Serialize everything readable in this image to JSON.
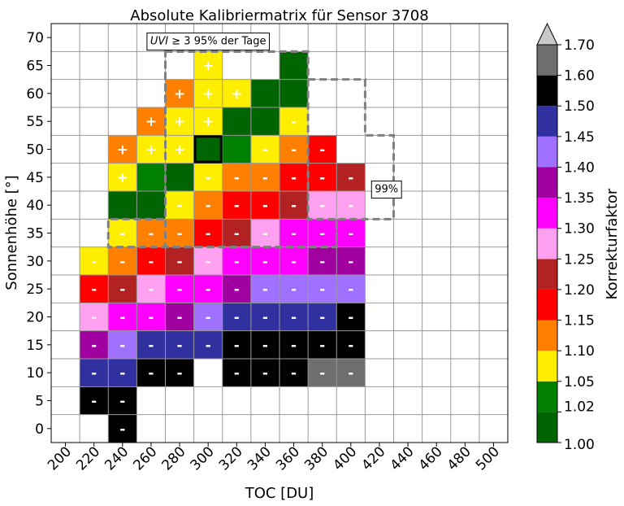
{
  "chart_data": {
    "type": "heatmap",
    "title": "Absolute Kalibriermatrix für Sensor 3708",
    "xlabel": "TOC [DU]",
    "ylabel": "Sonnenhöhe [°]",
    "x_ticks": [
      200,
      220,
      240,
      260,
      280,
      300,
      320,
      340,
      360,
      380,
      400,
      420,
      440,
      460,
      480,
      500
    ],
    "y_ticks": [
      0,
      5,
      10,
      15,
      20,
      25,
      30,
      35,
      40,
      45,
      50,
      55,
      60,
      65,
      70
    ],
    "xlim": [
      190,
      510
    ],
    "ylim": [
      -2.5,
      72.5
    ],
    "grid": true,
    "colorbar": {
      "label": "Korrekturfaktor",
      "tick_labels": [
        "1.00",
        "1.02",
        "1.05",
        "1.10",
        "1.15",
        "1.20",
        "1.25",
        "1.30",
        "1.35",
        "1.40",
        "1.45",
        "1.50",
        "1.60",
        "1.70"
      ],
      "bins": [
        {
          "from": 1.0,
          "to": 1.02,
          "color": "#006400"
        },
        {
          "from": 1.02,
          "to": 1.05,
          "color": "#008000"
        },
        {
          "from": 1.05,
          "to": 1.1,
          "color": "#ffee00"
        },
        {
          "from": 1.1,
          "to": 1.15,
          "color": "#ff8000"
        },
        {
          "from": 1.15,
          "to": 1.2,
          "color": "#ff0000"
        },
        {
          "from": 1.2,
          "to": 1.25,
          "color": "#b22222"
        },
        {
          "from": 1.25,
          "to": 1.3,
          "color": "#ffa0f0"
        },
        {
          "from": 1.3,
          "to": 1.35,
          "color": "#ff00ff"
        },
        {
          "from": 1.35,
          "to": 1.4,
          "color": "#a000a0"
        },
        {
          "from": 1.4,
          "to": 1.45,
          "color": "#a070ff"
        },
        {
          "from": 1.45,
          "to": 1.5,
          "color": "#3030a0"
        },
        {
          "from": 1.5,
          "to": 1.6,
          "color": "#000000"
        },
        {
          "from": 1.6,
          "to": 1.7,
          "color": "#6e6e6e"
        }
      ],
      "extend_top_color": "#c8c8c8"
    },
    "cells": [
      {
        "toc": 240,
        "elev": 0,
        "factor": 1.55,
        "sign": "-"
      },
      {
        "toc": 220,
        "elev": 5,
        "factor": 1.55,
        "sign": "-"
      },
      {
        "toc": 240,
        "elev": 5,
        "factor": 1.55,
        "sign": "-"
      },
      {
        "toc": 220,
        "elev": 10,
        "factor": 1.47,
        "sign": "-"
      },
      {
        "toc": 240,
        "elev": 10,
        "factor": 1.47,
        "sign": "-"
      },
      {
        "toc": 260,
        "elev": 10,
        "factor": 1.55,
        "sign": "-"
      },
      {
        "toc": 280,
        "elev": 10,
        "factor": 1.55,
        "sign": "-"
      },
      {
        "toc": 320,
        "elev": 10,
        "factor": 1.55,
        "sign": "-"
      },
      {
        "toc": 340,
        "elev": 10,
        "factor": 1.55,
        "sign": "-"
      },
      {
        "toc": 360,
        "elev": 10,
        "factor": 1.55,
        "sign": "-"
      },
      {
        "toc": 380,
        "elev": 10,
        "factor": 1.65,
        "sign": "-"
      },
      {
        "toc": 400,
        "elev": 10,
        "factor": 1.65,
        "sign": "-"
      },
      {
        "toc": 220,
        "elev": 15,
        "factor": 1.37,
        "sign": "-"
      },
      {
        "toc": 240,
        "elev": 15,
        "factor": 1.42,
        "sign": "-"
      },
      {
        "toc": 260,
        "elev": 15,
        "factor": 1.47,
        "sign": "-"
      },
      {
        "toc": 280,
        "elev": 15,
        "factor": 1.47,
        "sign": "-"
      },
      {
        "toc": 300,
        "elev": 15,
        "factor": 1.47,
        "sign": "-"
      },
      {
        "toc": 320,
        "elev": 15,
        "factor": 1.55,
        "sign": "-"
      },
      {
        "toc": 340,
        "elev": 15,
        "factor": 1.55,
        "sign": "-"
      },
      {
        "toc": 360,
        "elev": 15,
        "factor": 1.55,
        "sign": "-"
      },
      {
        "toc": 380,
        "elev": 15,
        "factor": 1.55,
        "sign": "-"
      },
      {
        "toc": 400,
        "elev": 15,
        "factor": 1.55,
        "sign": "-"
      },
      {
        "toc": 220,
        "elev": 20,
        "factor": 1.27,
        "sign": "-"
      },
      {
        "toc": 240,
        "elev": 20,
        "factor": 1.32,
        "sign": "-"
      },
      {
        "toc": 260,
        "elev": 20,
        "factor": 1.32,
        "sign": "-"
      },
      {
        "toc": 280,
        "elev": 20,
        "factor": 1.37,
        "sign": "-"
      },
      {
        "toc": 300,
        "elev": 20,
        "factor": 1.42,
        "sign": "-"
      },
      {
        "toc": 320,
        "elev": 20,
        "factor": 1.47,
        "sign": "-"
      },
      {
        "toc": 340,
        "elev": 20,
        "factor": 1.47,
        "sign": "-"
      },
      {
        "toc": 360,
        "elev": 20,
        "factor": 1.47,
        "sign": "-"
      },
      {
        "toc": 380,
        "elev": 20,
        "factor": 1.47,
        "sign": "-"
      },
      {
        "toc": 400,
        "elev": 20,
        "factor": 1.55,
        "sign": "-"
      },
      {
        "toc": 220,
        "elev": 25,
        "factor": 1.17,
        "sign": "-"
      },
      {
        "toc": 240,
        "elev": 25,
        "factor": 1.22,
        "sign": "-"
      },
      {
        "toc": 260,
        "elev": 25,
        "factor": 1.27,
        "sign": "-"
      },
      {
        "toc": 280,
        "elev": 25,
        "factor": 1.32,
        "sign": "-"
      },
      {
        "toc": 300,
        "elev": 25,
        "factor": 1.32,
        "sign": "-"
      },
      {
        "toc": 320,
        "elev": 25,
        "factor": 1.37,
        "sign": "-"
      },
      {
        "toc": 340,
        "elev": 25,
        "factor": 1.42,
        "sign": "-"
      },
      {
        "toc": 360,
        "elev": 25,
        "factor": 1.42,
        "sign": "-"
      },
      {
        "toc": 380,
        "elev": 25,
        "factor": 1.42,
        "sign": "-"
      },
      {
        "toc": 400,
        "elev": 25,
        "factor": 1.42,
        "sign": "-"
      },
      {
        "toc": 220,
        "elev": 30,
        "factor": 1.07,
        "sign": "-"
      },
      {
        "toc": 240,
        "elev": 30,
        "factor": 1.12,
        "sign": "-"
      },
      {
        "toc": 260,
        "elev": 30,
        "factor": 1.17,
        "sign": "-"
      },
      {
        "toc": 280,
        "elev": 30,
        "factor": 1.22,
        "sign": "-"
      },
      {
        "toc": 300,
        "elev": 30,
        "factor": 1.27,
        "sign": "-"
      },
      {
        "toc": 320,
        "elev": 30,
        "factor": 1.32,
        "sign": "-"
      },
      {
        "toc": 340,
        "elev": 30,
        "factor": 1.32,
        "sign": "-"
      },
      {
        "toc": 360,
        "elev": 30,
        "factor": 1.32,
        "sign": "-"
      },
      {
        "toc": 380,
        "elev": 30,
        "factor": 1.37,
        "sign": "-"
      },
      {
        "toc": 400,
        "elev": 30,
        "factor": 1.37,
        "sign": "-"
      },
      {
        "toc": 240,
        "elev": 35,
        "factor": 1.07,
        "sign": "-"
      },
      {
        "toc": 260,
        "elev": 35,
        "factor": 1.12,
        "sign": "-"
      },
      {
        "toc": 280,
        "elev": 35,
        "factor": 1.12,
        "sign": "-"
      },
      {
        "toc": 300,
        "elev": 35,
        "factor": 1.17,
        "sign": "-"
      },
      {
        "toc": 320,
        "elev": 35,
        "factor": 1.22,
        "sign": "-"
      },
      {
        "toc": 340,
        "elev": 35,
        "factor": 1.27,
        "sign": "-"
      },
      {
        "toc": 360,
        "elev": 35,
        "factor": 1.32,
        "sign": "-"
      },
      {
        "toc": 380,
        "elev": 35,
        "factor": 1.32,
        "sign": "-"
      },
      {
        "toc": 400,
        "elev": 35,
        "factor": 1.32,
        "sign": "-"
      },
      {
        "toc": 240,
        "elev": 40,
        "factor": 1.01,
        "sign": ""
      },
      {
        "toc": 260,
        "elev": 40,
        "factor": 1.01,
        "sign": ""
      },
      {
        "toc": 280,
        "elev": 40,
        "factor": 1.07,
        "sign": "-"
      },
      {
        "toc": 300,
        "elev": 40,
        "factor": 1.12,
        "sign": "-"
      },
      {
        "toc": 320,
        "elev": 40,
        "factor": 1.17,
        "sign": "-"
      },
      {
        "toc": 340,
        "elev": 40,
        "factor": 1.17,
        "sign": "-"
      },
      {
        "toc": 360,
        "elev": 40,
        "factor": 1.22,
        "sign": "-"
      },
      {
        "toc": 380,
        "elev": 40,
        "factor": 1.27,
        "sign": "-"
      },
      {
        "toc": 400,
        "elev": 40,
        "factor": 1.27,
        "sign": "-"
      },
      {
        "toc": 240,
        "elev": 45,
        "factor": 1.07,
        "sign": "+"
      },
      {
        "toc": 260,
        "elev": 45,
        "factor": 1.03,
        "sign": ""
      },
      {
        "toc": 280,
        "elev": 45,
        "factor": 1.01,
        "sign": ""
      },
      {
        "toc": 300,
        "elev": 45,
        "factor": 1.07,
        "sign": "-"
      },
      {
        "toc": 320,
        "elev": 45,
        "factor": 1.12,
        "sign": "-"
      },
      {
        "toc": 340,
        "elev": 45,
        "factor": 1.12,
        "sign": "-"
      },
      {
        "toc": 360,
        "elev": 45,
        "factor": 1.17,
        "sign": "-"
      },
      {
        "toc": 380,
        "elev": 45,
        "factor": 1.17,
        "sign": "-"
      },
      {
        "toc": 400,
        "elev": 45,
        "factor": 1.22,
        "sign": "-"
      },
      {
        "toc": 240,
        "elev": 50,
        "factor": 1.12,
        "sign": "+"
      },
      {
        "toc": 260,
        "elev": 50,
        "factor": 1.07,
        "sign": "+"
      },
      {
        "toc": 280,
        "elev": 50,
        "factor": 1.07,
        "sign": "+"
      },
      {
        "toc": 300,
        "elev": 50,
        "factor": 1.01,
        "sign": "",
        "highlight": true
      },
      {
        "toc": 320,
        "elev": 50,
        "factor": 1.03,
        "sign": ""
      },
      {
        "toc": 340,
        "elev": 50,
        "factor": 1.07,
        "sign": "-"
      },
      {
        "toc": 360,
        "elev": 50,
        "factor": 1.12,
        "sign": "-"
      },
      {
        "toc": 380,
        "elev": 50,
        "factor": 1.17,
        "sign": "-"
      },
      {
        "toc": 260,
        "elev": 55,
        "factor": 1.12,
        "sign": "+"
      },
      {
        "toc": 280,
        "elev": 55,
        "factor": 1.07,
        "sign": "+"
      },
      {
        "toc": 300,
        "elev": 55,
        "factor": 1.07,
        "sign": "+"
      },
      {
        "toc": 320,
        "elev": 55,
        "factor": 1.01,
        "sign": ""
      },
      {
        "toc": 340,
        "elev": 55,
        "factor": 1.01,
        "sign": ""
      },
      {
        "toc": 360,
        "elev": 55,
        "factor": 1.07,
        "sign": "-"
      },
      {
        "toc": 280,
        "elev": 60,
        "factor": 1.12,
        "sign": "+"
      },
      {
        "toc": 300,
        "elev": 60,
        "factor": 1.07,
        "sign": "+"
      },
      {
        "toc": 320,
        "elev": 60,
        "factor": 1.07,
        "sign": "+"
      },
      {
        "toc": 340,
        "elev": 60,
        "factor": 1.01,
        "sign": ""
      },
      {
        "toc": 360,
        "elev": 60,
        "factor": 1.01,
        "sign": ""
      },
      {
        "toc": 300,
        "elev": 65,
        "factor": 1.07,
        "sign": "+"
      },
      {
        "toc": 360,
        "elev": 65,
        "factor": 1.01,
        "sign": ""
      }
    ],
    "annotations": [
      {
        "text_italic": "UVI",
        "text_rest": " ≥ 3 95% der Tage",
        "anchor_toc": 300,
        "anchor_elev": 69.5
      },
      {
        "text": "99%",
        "anchor_toc": 425,
        "anchor_elev": 43
      }
    ],
    "contours": [
      {
        "name": "95%",
        "points": [
          [
            270,
            67.5
          ],
          [
            370,
            67.5
          ],
          [
            370,
            37.5
          ],
          [
            390,
            37.5
          ],
          [
            390,
            32.5
          ],
          [
            370,
            32.5
          ],
          [
            370,
            32.5
          ],
          [
            270,
            32.5
          ],
          [
            270,
            37.5
          ],
          [
            270,
            67.5
          ]
        ]
      },
      {
        "name": "99%",
        "points": [
          [
            270,
            67.5
          ],
          [
            370,
            67.5
          ],
          [
            370,
            62.5
          ],
          [
            410,
            62.5
          ],
          [
            410,
            52.5
          ],
          [
            430,
            52.5
          ],
          [
            430,
            37.5
          ],
          [
            390,
            37.5
          ],
          [
            390,
            32.5
          ],
          [
            230,
            32.5
          ],
          [
            230,
            37.5
          ],
          [
            250,
            37.5
          ],
          [
            250,
            37.5
          ],
          [
            270,
            37.5
          ],
          [
            270,
            67.5
          ]
        ]
      }
    ]
  }
}
